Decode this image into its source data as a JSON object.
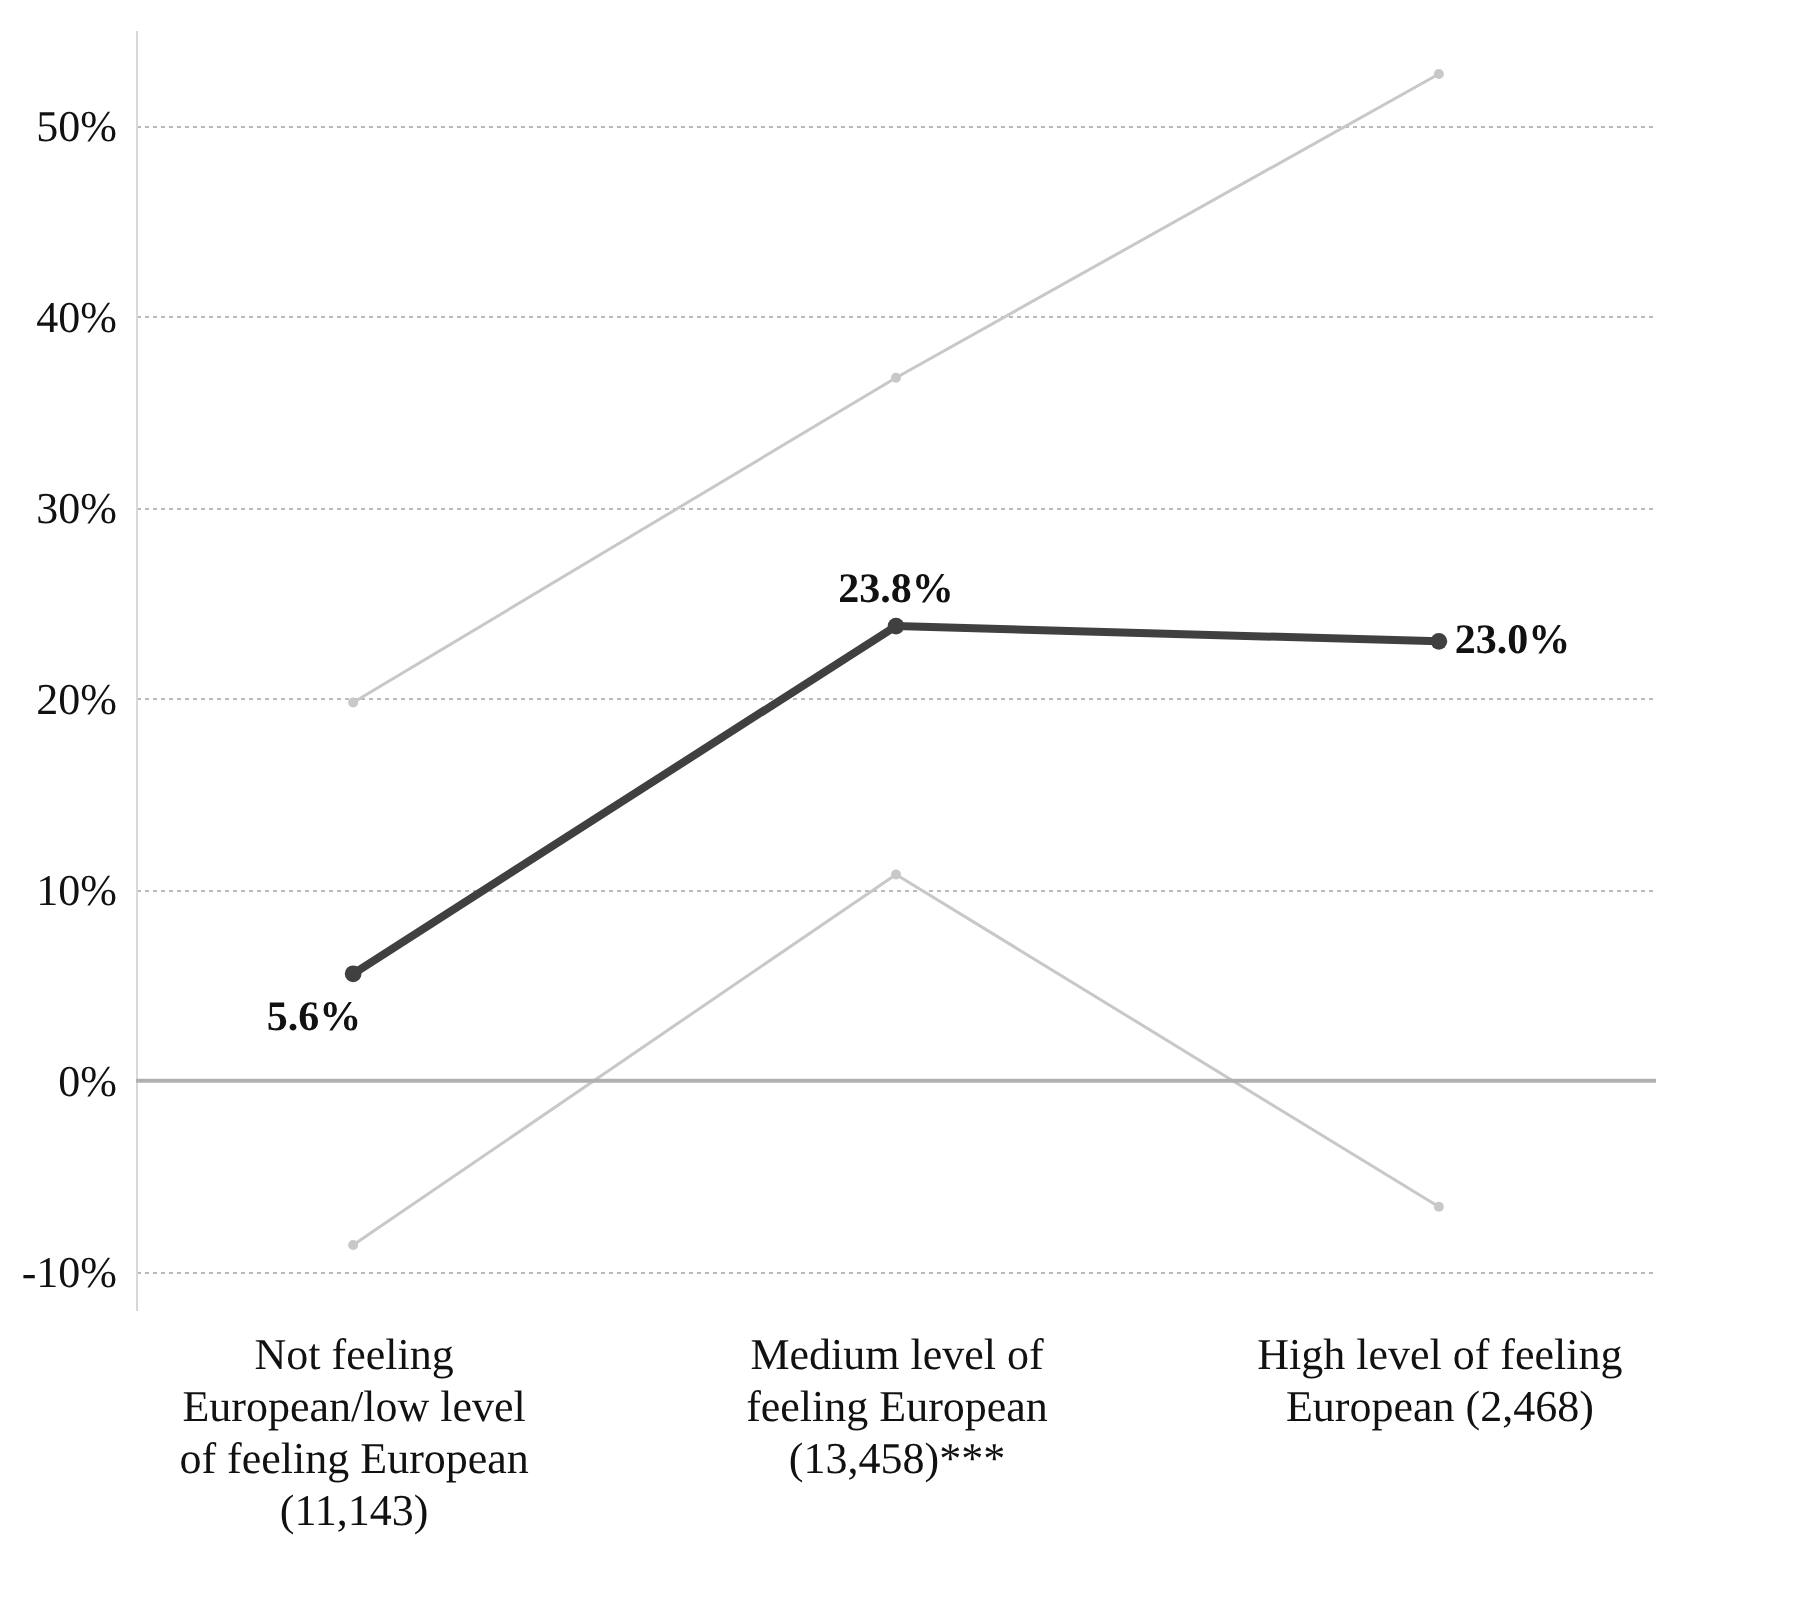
{
  "chart_data": {
    "type": "line",
    "categories": [
      "Not feeling\nEuropean/low level\nof feeling European\n(11,143)",
      "Medium level of\nfeeling European\n(13,458)***",
      "High level of feeling\nEuropean (2,468)"
    ],
    "series": [
      {
        "color": "#c8c8c8",
        "values": [
          19.8,
          36.8,
          52.7
        ]
      },
      {
        "color": "#c8c8c8",
        "values": [
          -8.6,
          10.8,
          -6.6
        ]
      },
      {
        "color": "#404040",
        "values": [
          5.6,
          23.8,
          23.0
        ],
        "value_labels": [
          "5.6%",
          "23.8%",
          "23.0%"
        ]
      }
    ],
    "ylim": [
      -12,
      55
    ],
    "yticks": [
      {
        "value": -10,
        "label": "-10%"
      },
      {
        "value": 0,
        "label": "0%"
      },
      {
        "value": 10,
        "label": "10%"
      },
      {
        "value": 20,
        "label": "20%"
      },
      {
        "value": 30,
        "label": "30%"
      },
      {
        "value": 40,
        "label": "40%"
      },
      {
        "value": 50,
        "label": "50%"
      }
    ],
    "ref_lines": [
      {
        "axis": "y",
        "value": 0,
        "color": "#b0b0b0"
      }
    ],
    "grid": "y",
    "marker": "circle",
    "line_style": "solid"
  }
}
